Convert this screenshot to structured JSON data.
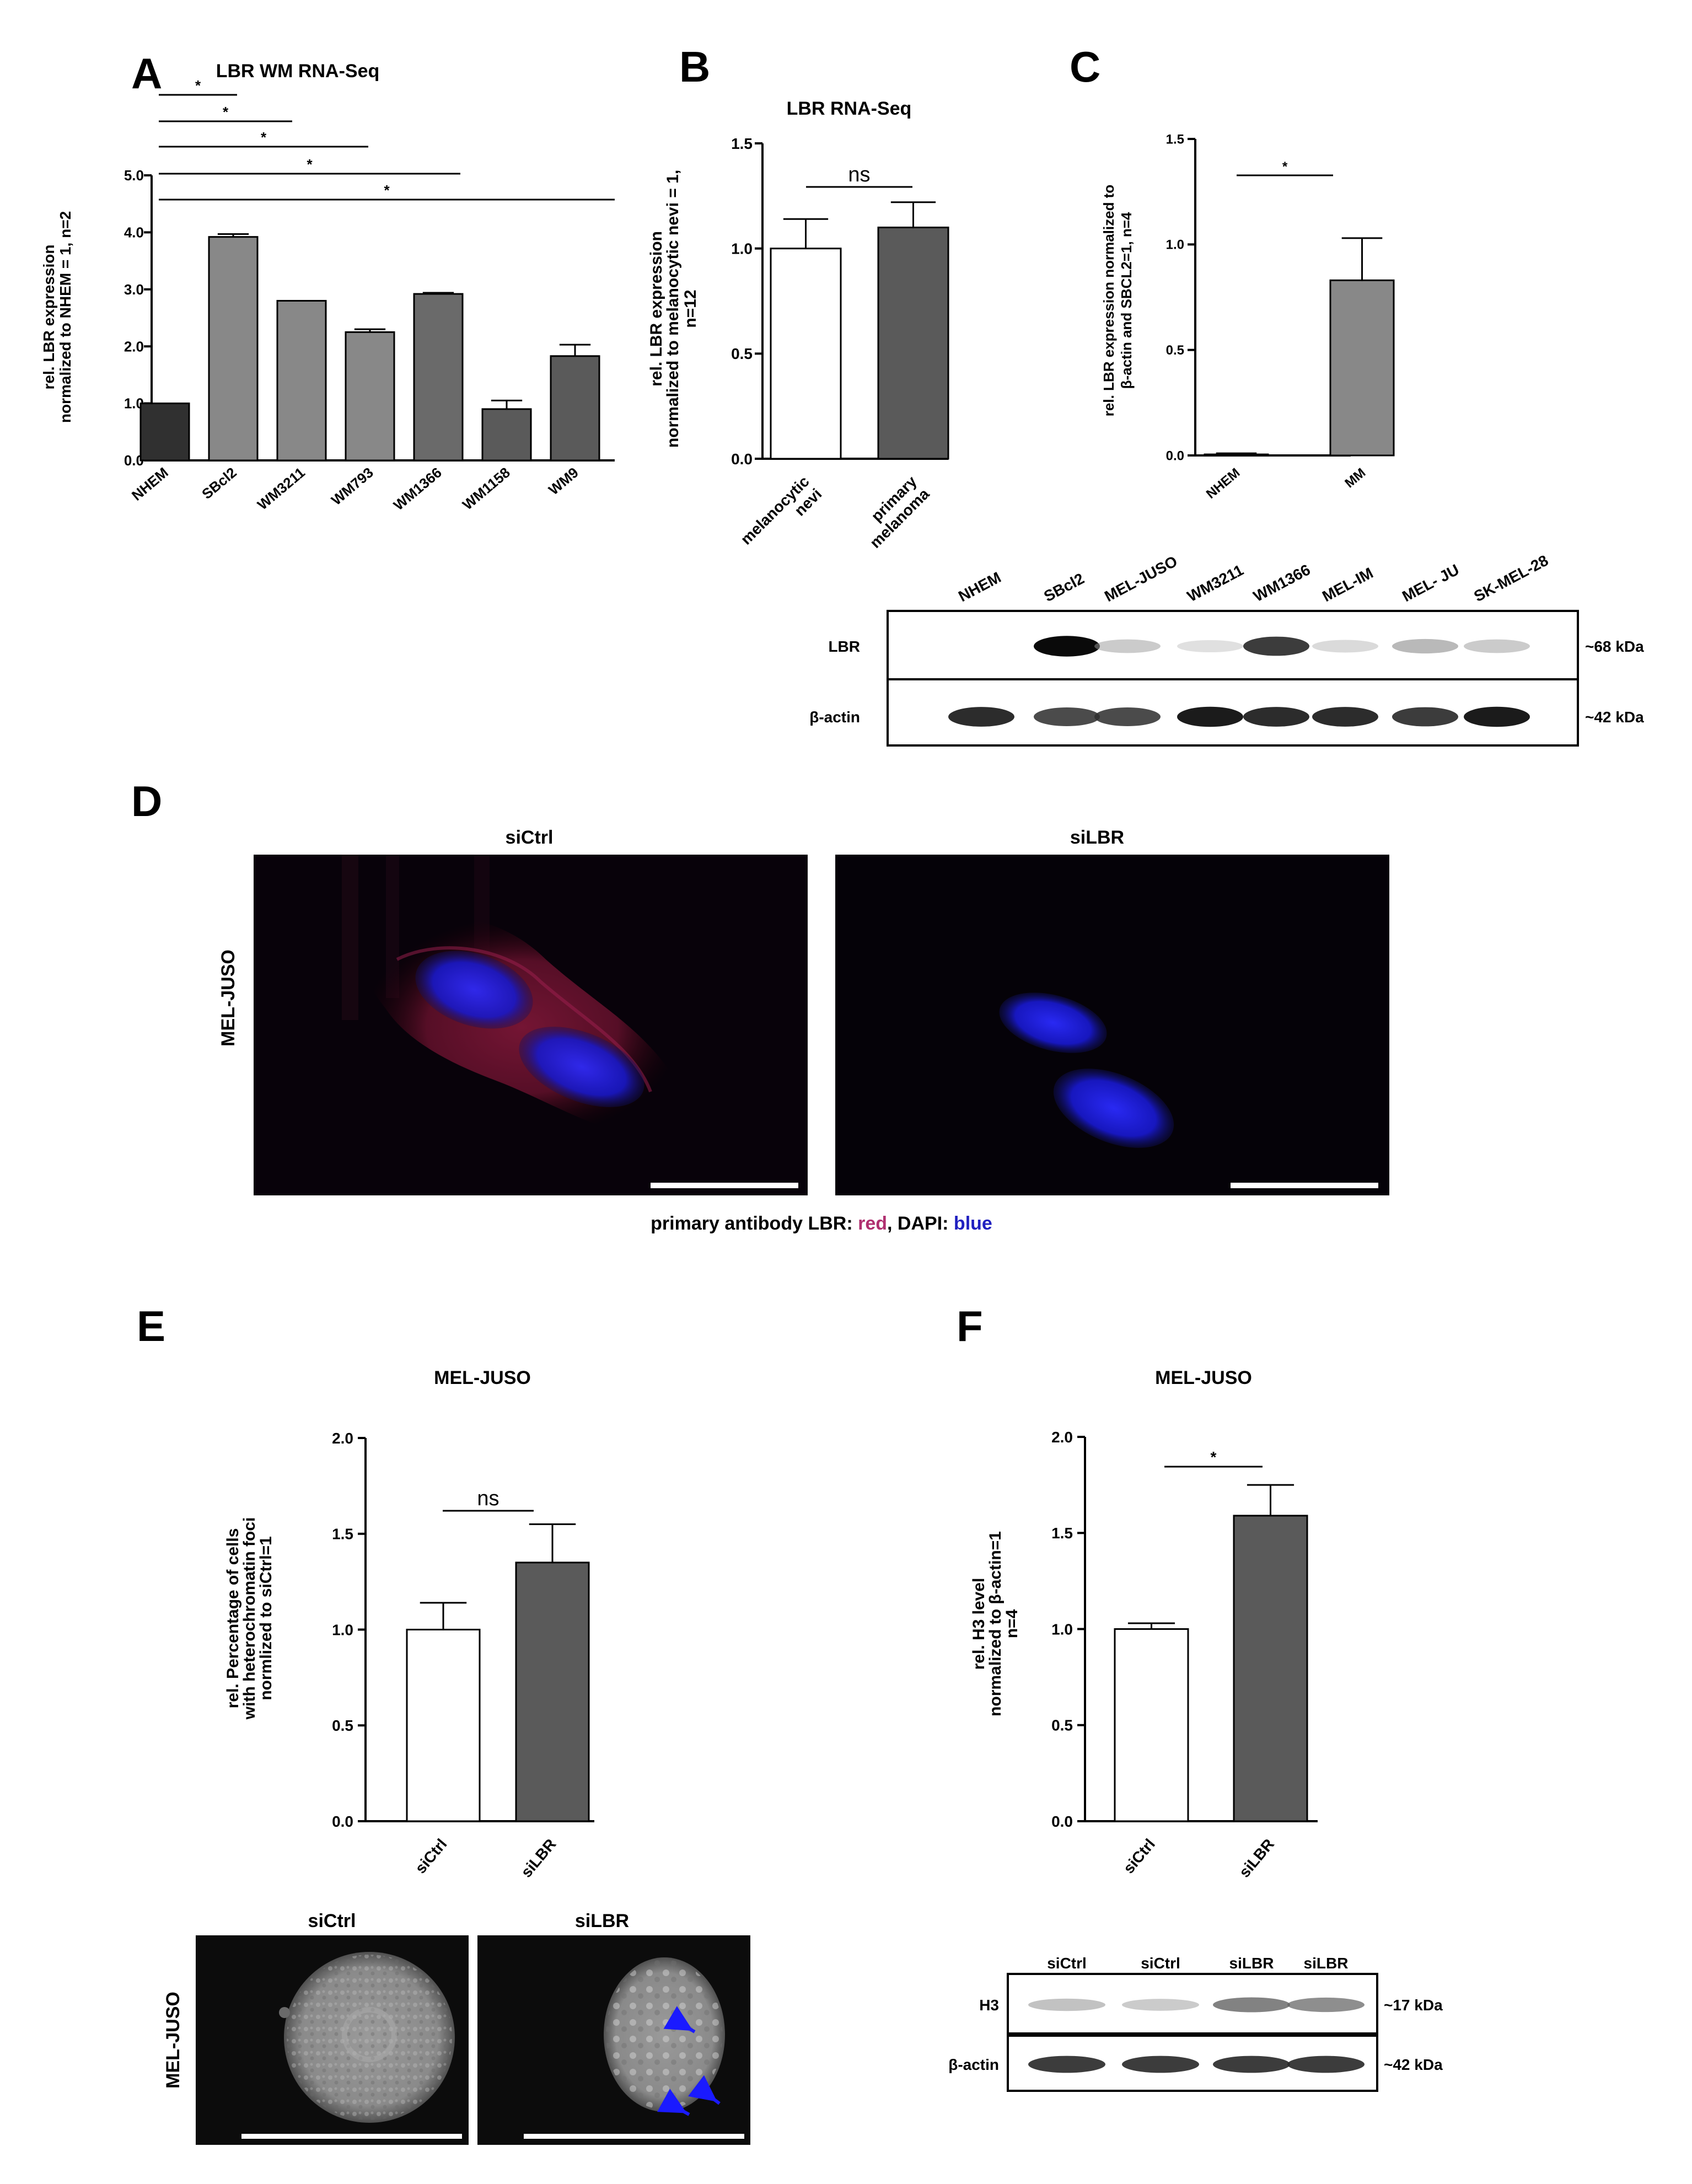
{
  "panels": {
    "A": {
      "letter": "A",
      "title": "LBR WM RNA-Seq"
    },
    "B": {
      "letter": "B",
      "title": "LBR RNA-Seq"
    },
    "C": {
      "letter": "C"
    },
    "D": {
      "letter": "D",
      "col1": "siCtrl",
      "col2": "siLBR",
      "row_label": "MEL-JUSO",
      "legend": {
        "prefix": "primary antibody LBR: ",
        "red": "red",
        "mid": ", DAPI: ",
        "blue": "blue"
      }
    },
    "E": {
      "letter": "E",
      "title": "MEL-JUSO",
      "img_col1": "siCtrl",
      "img_col2": "siLBR",
      "img_row_label": "MEL-JUSO"
    },
    "F": {
      "letter": "F",
      "title": "MEL-JUSO"
    }
  },
  "colors": {
    "red_label": "#b03070",
    "blue_label": "#2020c0",
    "dapi": "#1a1ae0",
    "arrow": "#1a1aff"
  },
  "blot_C": {
    "lanes": [
      "NHEM",
      "SBcl2",
      "MEL-JUSO",
      "WM3211",
      "WM1366",
      "MEL-IM",
      "MEL- JU",
      "SK-MEL-28"
    ],
    "rows": [
      {
        "label": "LBR",
        "size": "~68 kDa",
        "intensity": [
          0,
          1.0,
          0.25,
          0.1,
          0.85,
          0.15,
          0.35,
          0.25
        ]
      },
      {
        "label": "β-actin",
        "size": "~42 kDa",
        "intensity": [
          0.9,
          0.8,
          0.8,
          0.95,
          0.9,
          0.9,
          0.85,
          0.95
        ]
      }
    ]
  },
  "blot_F": {
    "lanes": [
      "siCtrl",
      "siCtrl",
      "siLBR",
      "siLBR"
    ],
    "rows": [
      {
        "label": "H3",
        "size": "~17 kDa",
        "intensity": [
          0.3,
          0.25,
          0.6,
          0.55
        ]
      },
      {
        "label": "β-actin",
        "size": "~42 kDa",
        "intensity": [
          0.85,
          0.85,
          0.85,
          0.85
        ]
      }
    ]
  },
  "chart_data": [
    {
      "panel": "A",
      "type": "bar",
      "title": "LBR WM RNA-Seq",
      "categories": [
        "NHEM",
        "SBcl2",
        "WM3211",
        "WM793",
        "WM1366",
        "WM1158",
        "WM9"
      ],
      "values": [
        1.0,
        3.92,
        2.8,
        2.25,
        2.92,
        0.9,
        1.83
      ],
      "errors": [
        0,
        0.05,
        0,
        0.05,
        0.02,
        0.15,
        0.2
      ],
      "colors": [
        "#303030",
        "#888888",
        "#888888",
        "#888888",
        "#6a6a6a",
        "#5a5a5a",
        "#5a5a5a"
      ],
      "ylabel_lines": [
        "rel. LBR expression",
        "normalized to NHEM = 1, n=2"
      ],
      "ylim": [
        0,
        5
      ],
      "yticks": [
        "0.0",
        "1.0",
        "2.0",
        "3.0",
        "4.0",
        "5.0"
      ],
      "significance": [
        {
          "from": 0,
          "to": 1,
          "label": "*"
        },
        {
          "from": 0,
          "to": 2,
          "label": "*"
        },
        {
          "from": 0,
          "to": 3,
          "label": "*"
        },
        {
          "from": 0,
          "to": 4,
          "label": "*"
        },
        {
          "from": 0,
          "to": 6,
          "label": "*"
        }
      ]
    },
    {
      "panel": "B",
      "type": "bar",
      "title": "LBR RNA-Seq",
      "categories": [
        "melanocytic\nnevi",
        "primary\nmelanoma"
      ],
      "values": [
        1.0,
        1.1
      ],
      "errors": [
        0.14,
        0.12
      ],
      "colors": [
        "#ffffff",
        "#5a5a5a"
      ],
      "ylabel_lines": [
        "rel. LBR expression",
        "normalized to melanocytic nevi = 1,",
        "n=12"
      ],
      "ylim": [
        0,
        1.5
      ],
      "yticks": [
        "0.0",
        "0.5",
        "1.0",
        "1.5"
      ],
      "significance": [
        {
          "from": 0,
          "to": 1,
          "label": "ns"
        }
      ]
    },
    {
      "panel": "C",
      "type": "bar",
      "categories": [
        "NHEM",
        "MM"
      ],
      "values": [
        0.005,
        0.83
      ],
      "errors": [
        0.005,
        0.2
      ],
      "colors": [
        "#888888",
        "#888888"
      ],
      "ylabel_lines": [
        "rel. LBR expression normalized to",
        "β-actin and SBCL2=1, n=4"
      ],
      "ylim": [
        0,
        1.5
      ],
      "yticks": [
        "0.0",
        "0.5",
        "1.0",
        "1.5"
      ],
      "significance": [
        {
          "from": 0,
          "to": 1,
          "label": "*"
        }
      ]
    },
    {
      "panel": "E",
      "type": "bar",
      "categories": [
        "siCtrl",
        "siLBR"
      ],
      "values": [
        1.0,
        1.35
      ],
      "errors": [
        0.14,
        0.2
      ],
      "colors": [
        "#ffffff",
        "#5a5a5a"
      ],
      "ylabel_lines": [
        "rel. Percentage of cells",
        "with heterochromatin foci",
        "normlized to siCtrl=1"
      ],
      "ylim": [
        0,
        2
      ],
      "yticks": [
        "0.0",
        "0.5",
        "1.0",
        "1.5",
        "2.0"
      ],
      "significance": [
        {
          "from": 0,
          "to": 1,
          "label": "ns"
        }
      ]
    },
    {
      "panel": "F",
      "type": "bar",
      "categories": [
        "siCtrl",
        "siLBR"
      ],
      "values": [
        1.0,
        1.59
      ],
      "errors": [
        0.03,
        0.16
      ],
      "colors": [
        "#ffffff",
        "#5a5a5a"
      ],
      "ylabel_lines": [
        "rel. H3 level",
        "normalized to β-actin=1",
        "n=4"
      ],
      "ylim": [
        0,
        2
      ],
      "yticks": [
        "0.0",
        "0.5",
        "1.0",
        "1.5",
        "2.0"
      ],
      "significance": [
        {
          "from": 0,
          "to": 1,
          "label": "*"
        }
      ]
    }
  ]
}
